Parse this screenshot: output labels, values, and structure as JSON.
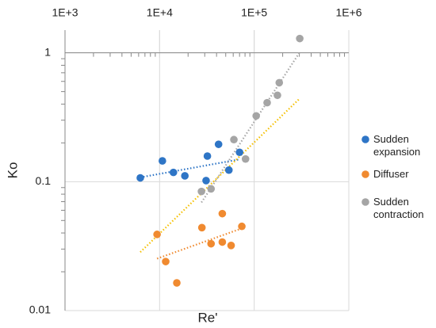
{
  "chart_data": {
    "type": "scatter",
    "xlabel": "Re'",
    "ylabel": "Ko",
    "log_x": true,
    "log_y": true,
    "grid": true,
    "xlim": [
      1000,
      1000000
    ],
    "ylim": [
      0.01,
      1.5
    ],
    "xticks": [
      {
        "value": 1000,
        "label": "1E+3"
      },
      {
        "value": 10000,
        "label": "1E+4"
      },
      {
        "value": 100000,
        "label": "1E+5"
      },
      {
        "value": 1000000,
        "label": "1E+6"
      }
    ],
    "yticks": [
      0.01,
      0.1,
      1
    ],
    "legend": "right",
    "series": [
      {
        "name": "Sudden expansion",
        "color": "#2e75c6",
        "x": [
          6250,
          10700,
          14000,
          18500,
          32000,
          42000,
          31000,
          54000,
          70000
        ],
        "values": [
          0.107,
          0.145,
          0.118,
          0.111,
          0.158,
          0.195,
          0.102,
          0.123,
          0.169
        ]
      },
      {
        "name": "Diffuser",
        "color": "#f08a30",
        "x": [
          9400,
          11600,
          15200,
          28000,
          35000,
          46000,
          46000,
          57000,
          74000
        ],
        "values": [
          0.039,
          0.024,
          0.0164,
          0.044,
          0.033,
          0.0565,
          0.034,
          0.032,
          0.045
        ]
      },
      {
        "name": "Sudden contraction",
        "color": "#a5a5a5",
        "x": [
          27700,
          35000,
          61000,
          81000,
          105000,
          137000,
          176000,
          184000,
          303000
        ],
        "values": [
          0.084,
          0.088,
          0.212,
          0.15,
          0.324,
          0.41,
          0.468,
          0.586,
          1.29
        ]
      }
    ],
    "trendlines": [
      {
        "color": "#2e75c6",
        "x": [
          6250,
          70000
        ],
        "values": [
          0.108,
          0.149
        ]
      },
      {
        "color": "#f08a30",
        "x": [
          9400,
          78000
        ],
        "values": [
          0.0253,
          0.044
        ]
      },
      {
        "color": "#f5c000",
        "x": [
          6250,
          303000
        ],
        "values": [
          0.0284,
          0.442
        ]
      },
      {
        "color": "#a5a5a5",
        "x": [
          27700,
          303000
        ],
        "values": [
          0.069,
          1.01
        ]
      }
    ]
  }
}
